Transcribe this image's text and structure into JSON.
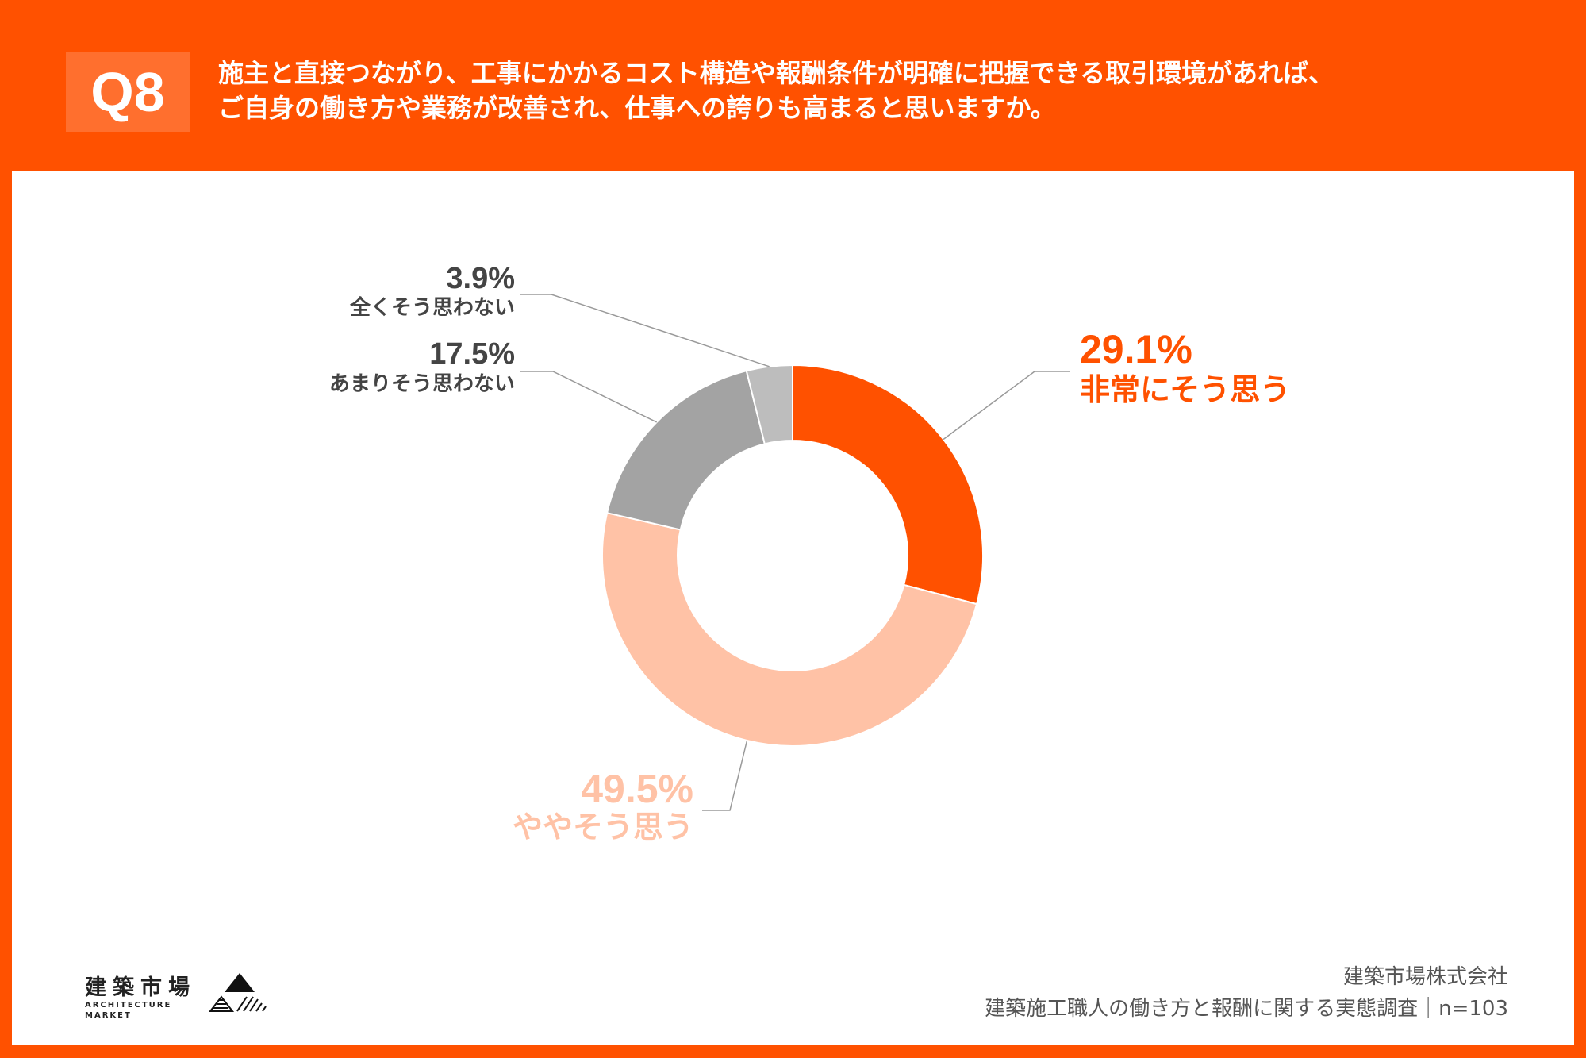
{
  "header": {
    "badge": "Q8",
    "question_line1": "施主と直接つながり、工事にかかるコスト構造や報酬条件が明確に把握できる取引環境があれば、",
    "question_line2": "ご自身の働き方や業務が改善され、仕事への誇りも高まると思いますか。"
  },
  "chart_data": {
    "type": "pie",
    "donut": true,
    "categories": [
      "非常にそう思う",
      "ややそう思う",
      "あまりそう思わない",
      "全くそう思わない"
    ],
    "values": [
      29.1,
      49.5,
      17.5,
      3.9
    ],
    "value_labels": [
      "29.1%",
      "49.5%",
      "17.5%",
      "3.9%"
    ],
    "colors": [
      "#ff5100",
      "#ffc2a6",
      "#a3a3a3",
      "#bdbdbd"
    ],
    "label_colors": [
      "#ff5100",
      "#ffc2a6",
      "#444444",
      "#444444"
    ],
    "start": "12 o'clock",
    "direction": "clockwise"
  },
  "logo": {
    "jp": "建築市場",
    "en_line1": "ARCHITECTURE",
    "en_line2": "MARKET",
    "mark_icon": "triangle-mountain-icon"
  },
  "source": {
    "company": "建築市場株式会社",
    "survey": "建築施工職人の働き方と報酬に関する実態調査｜n=103"
  }
}
